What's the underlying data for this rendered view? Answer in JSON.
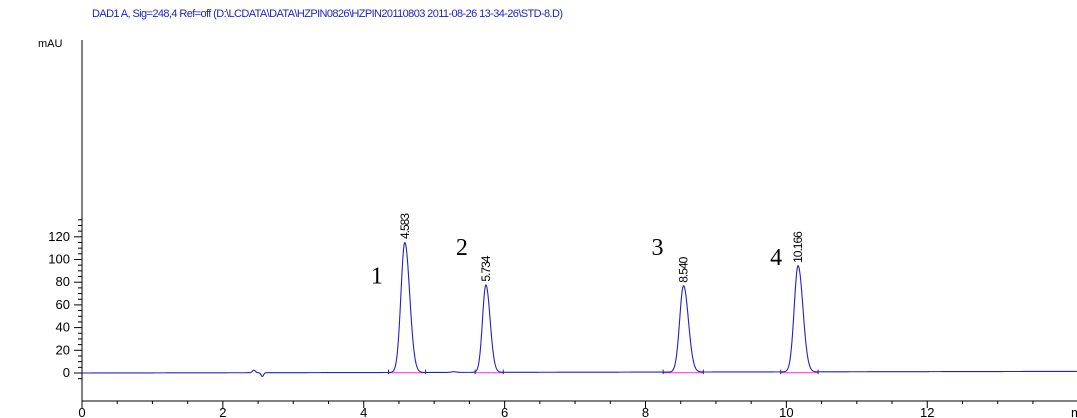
{
  "chart_data": {
    "type": "line",
    "title": "DAD1 A, Sig=248,4 Ref=off (D:\\LCDATA\\DATA\\HZPIN0826\\HZPIN20110803 2011-08-26 13-34-26\\STD-8.D)",
    "ylabel": "mAU",
    "xlabel": "m",
    "xlim": [
      0,
      13.7
    ],
    "ylim": [
      -6,
      146
    ],
    "x_ticks": [
      0,
      2,
      4,
      6,
      8,
      10,
      12
    ],
    "y_ticks": [
      0,
      20,
      40,
      60,
      80,
      100,
      120
    ],
    "grid": false,
    "colors": {
      "signal": "#2020d0",
      "baseline": "#ff2fd0",
      "title": "#1f24c9",
      "axis": "#000000"
    },
    "peaks": [
      {
        "label": "4.583",
        "number": "1",
        "rt": 4.583,
        "height": 114.5,
        "width": 0.055
      },
      {
        "label": "5.734",
        "number": "2",
        "rt": 5.734,
        "height": 77.0,
        "width": 0.048
      },
      {
        "label": "8.540",
        "number": "3",
        "rt": 8.54,
        "height": 76.0,
        "width": 0.055
      },
      {
        "label": "10.166",
        "number": "4",
        "rt": 10.166,
        "height": 93.5,
        "width": 0.055
      }
    ],
    "baseline_segments": [
      [
        4.35,
        4.88
      ],
      [
        5.58,
        5.98
      ],
      [
        8.25,
        8.82
      ],
      [
        9.92,
        10.45
      ]
    ]
  }
}
